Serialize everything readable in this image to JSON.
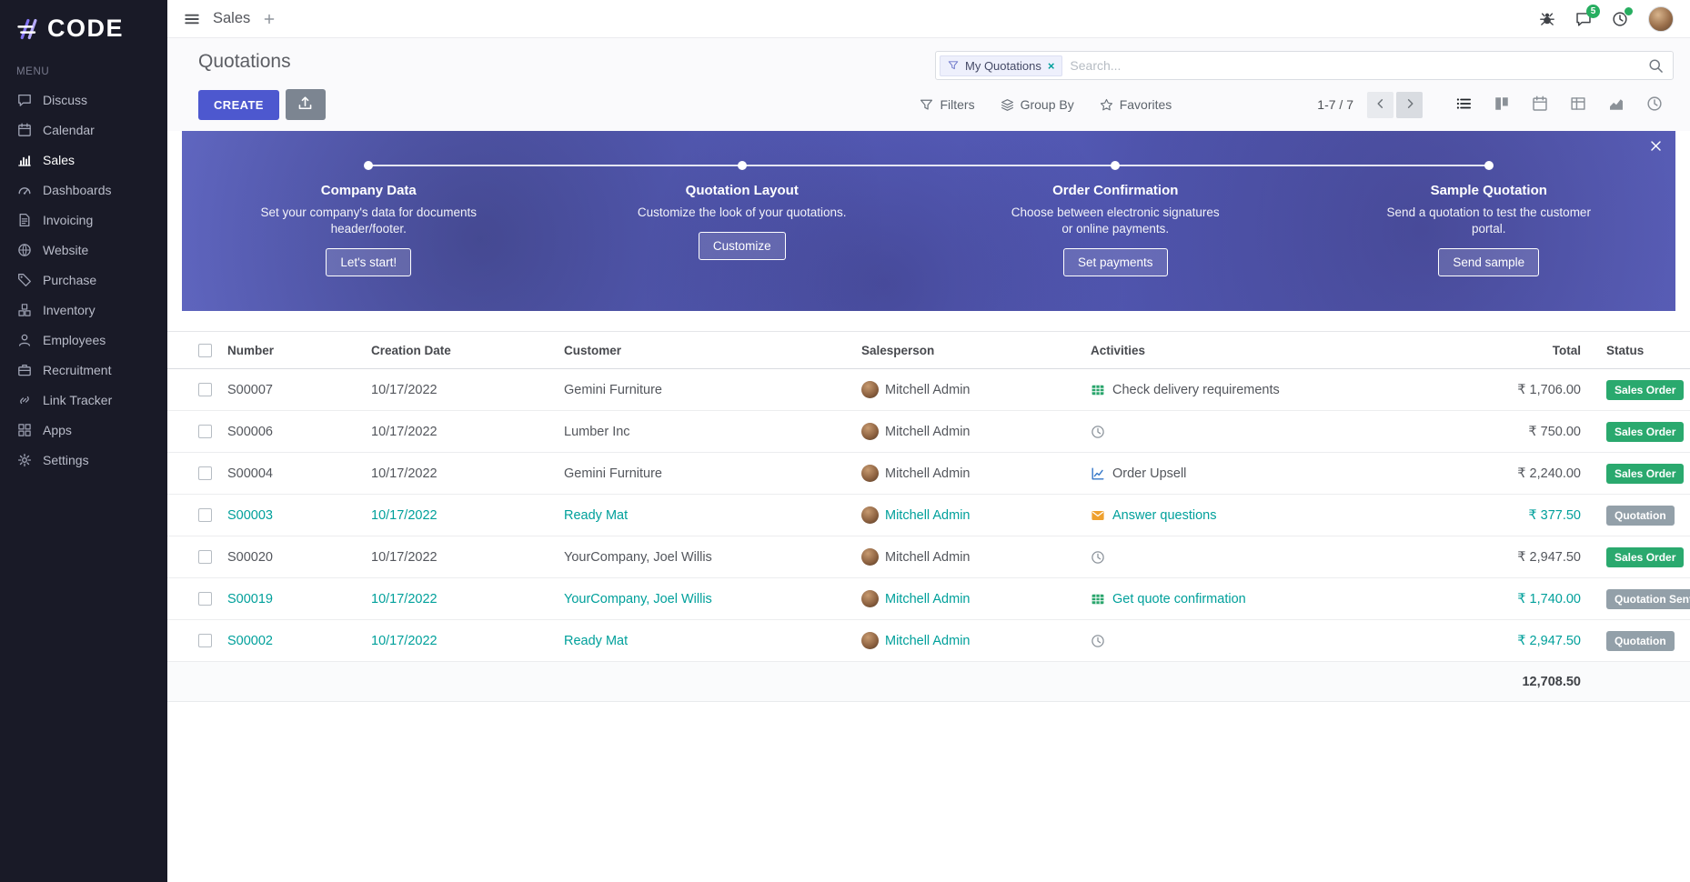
{
  "brand": {
    "name": "CODE"
  },
  "topbar": {
    "app_name": "Sales",
    "messages_badge": "5"
  },
  "sidebar": {
    "section_label": "MENU",
    "items": [
      {
        "label": "Discuss",
        "icon": "discuss",
        "active": false
      },
      {
        "label": "Calendar",
        "icon": "calendar",
        "active": false
      },
      {
        "label": "Sales",
        "icon": "sales",
        "active": true
      },
      {
        "label": "Dashboards",
        "icon": "dashboards",
        "active": false
      },
      {
        "label": "Invoicing",
        "icon": "invoicing",
        "active": false
      },
      {
        "label": "Website",
        "icon": "website",
        "active": false
      },
      {
        "label": "Purchase",
        "icon": "purchase",
        "active": false
      },
      {
        "label": "Inventory",
        "icon": "inventory",
        "active": false
      },
      {
        "label": "Employees",
        "icon": "employees",
        "active": false
      },
      {
        "label": "Recruitment",
        "icon": "recruitment",
        "active": false
      },
      {
        "label": "Link Tracker",
        "icon": "link",
        "active": false
      },
      {
        "label": "Apps",
        "icon": "apps",
        "active": false
      },
      {
        "label": "Settings",
        "icon": "settings",
        "active": false
      }
    ]
  },
  "control_panel": {
    "title": "Quotations",
    "create_button": "CREATE",
    "search": {
      "facet": "My Quotations",
      "placeholder": "Search..."
    },
    "filters": "Filters",
    "group_by": "Group By",
    "favorites": "Favorites",
    "pager": "1-7 / 7"
  },
  "onboarding": {
    "steps": [
      {
        "title": "Company Data",
        "description": "Set your company's data for documents header/footer.",
        "button": "Let's start!"
      },
      {
        "title": "Quotation Layout",
        "description": "Customize the look of your quotations.",
        "button": "Customize"
      },
      {
        "title": "Order Confirmation",
        "description": "Choose between electronic signatures or online payments.",
        "button": "Set payments"
      },
      {
        "title": "Sample Quotation",
        "description": "Send a quotation to test the customer portal.",
        "button": "Send sample"
      }
    ]
  },
  "table": {
    "headers": {
      "number": "Number",
      "date": "Creation Date",
      "customer": "Customer",
      "salesperson": "Salesperson",
      "activities": "Activities",
      "total": "Total",
      "status": "Status"
    },
    "rows": [
      {
        "number": "S00007",
        "date": "10/17/2022",
        "customer": "Gemini Furniture",
        "salesperson": "Mitchell Admin",
        "activity": "Check delivery requirements",
        "activity_icon": "spreadsheet",
        "total": "₹ 1,706.00",
        "status": "Sales Order",
        "status_type": "success",
        "state": "order"
      },
      {
        "number": "S00006",
        "date": "10/17/2022",
        "customer": "Lumber Inc",
        "salesperson": "Mitchell Admin",
        "activity": "",
        "activity_icon": "clock",
        "total": "₹ 750.00",
        "status": "Sales Order",
        "status_type": "success",
        "state": "order"
      },
      {
        "number": "S00004",
        "date": "10/17/2022",
        "customer": "Gemini Furniture",
        "salesperson": "Mitchell Admin",
        "activity": "Order Upsell",
        "activity_icon": "line-chart",
        "total": "₹ 2,240.00",
        "status": "Sales Order",
        "status_type": "success",
        "state": "order"
      },
      {
        "number": "S00003",
        "date": "10/17/2022",
        "customer": "Ready Mat",
        "salesperson": "Mitchell Admin",
        "activity": "Answer questions",
        "activity_icon": "envelope",
        "total": "₹ 377.50",
        "status": "Quotation",
        "status_type": "muted",
        "state": "quotation"
      },
      {
        "number": "S00020",
        "date": "10/17/2022",
        "customer": "YourCompany, Joel Willis",
        "salesperson": "Mitchell Admin",
        "activity": "",
        "activity_icon": "clock",
        "total": "₹ 2,947.50",
        "status": "Sales Order",
        "status_type": "success",
        "state": "order"
      },
      {
        "number": "S00019",
        "date": "10/17/2022",
        "customer": "YourCompany, Joel Willis",
        "salesperson": "Mitchell Admin",
        "activity": "Get quote confirmation",
        "activity_icon": "spreadsheet",
        "total": "₹ 1,740.00",
        "status": "Quotation Sent",
        "status_type": "muted",
        "state": "quotation"
      },
      {
        "number": "S00002",
        "date": "10/17/2022",
        "customer": "Ready Mat",
        "salesperson": "Mitchell Admin",
        "activity": "",
        "activity_icon": "clock",
        "total": "₹ 2,947.50",
        "status": "Quotation",
        "status_type": "muted",
        "state": "quotation"
      }
    ],
    "footer_total": "12,708.50"
  },
  "colors": {
    "accent": "#4d58cf",
    "success_badge": "#2aa96e",
    "muted_badge": "#93a0a9",
    "quotation_link": "#00a09b",
    "sidebar_bg": "#191a27"
  }
}
